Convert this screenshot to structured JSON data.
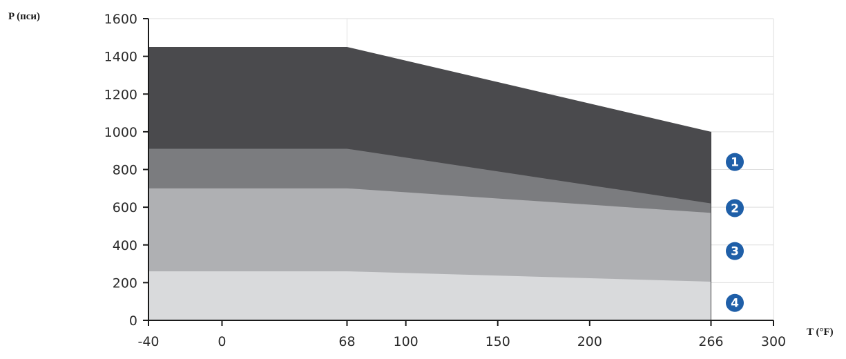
{
  "chart_data": {
    "type": "area",
    "stacked": false,
    "xlabel": "T (°F)",
    "ylabel": "P (пси)",
    "xlim": [
      -40,
      300
    ],
    "ylim": [
      0,
      1600
    ],
    "x_ticks": [
      -40,
      0,
      68,
      100,
      150,
      200,
      266,
      300
    ],
    "y_ticks": [
      0,
      200,
      400,
      600,
      800,
      1000,
      1200,
      1400,
      1600
    ],
    "grid": true,
    "series": [
      {
        "name": "1",
        "color": "#4a4a4d",
        "x": [
          -40,
          68,
          266
        ],
        "y": [
          1450,
          1450,
          1000
        ]
      },
      {
        "name": "2",
        "color": "#7b7c7f",
        "x": [
          -40,
          68,
          266
        ],
        "y": [
          910,
          910,
          620
        ]
      },
      {
        "name": "3",
        "color": "#afb0b3",
        "x": [
          -40,
          68,
          266
        ],
        "y": [
          700,
          700,
          570
        ]
      },
      {
        "name": "4",
        "color": "#d9dadc",
        "x": [
          -40,
          68,
          266
        ],
        "y": [
          260,
          260,
          205
        ]
      }
    ],
    "badge_color": "#1f5fa8"
  }
}
